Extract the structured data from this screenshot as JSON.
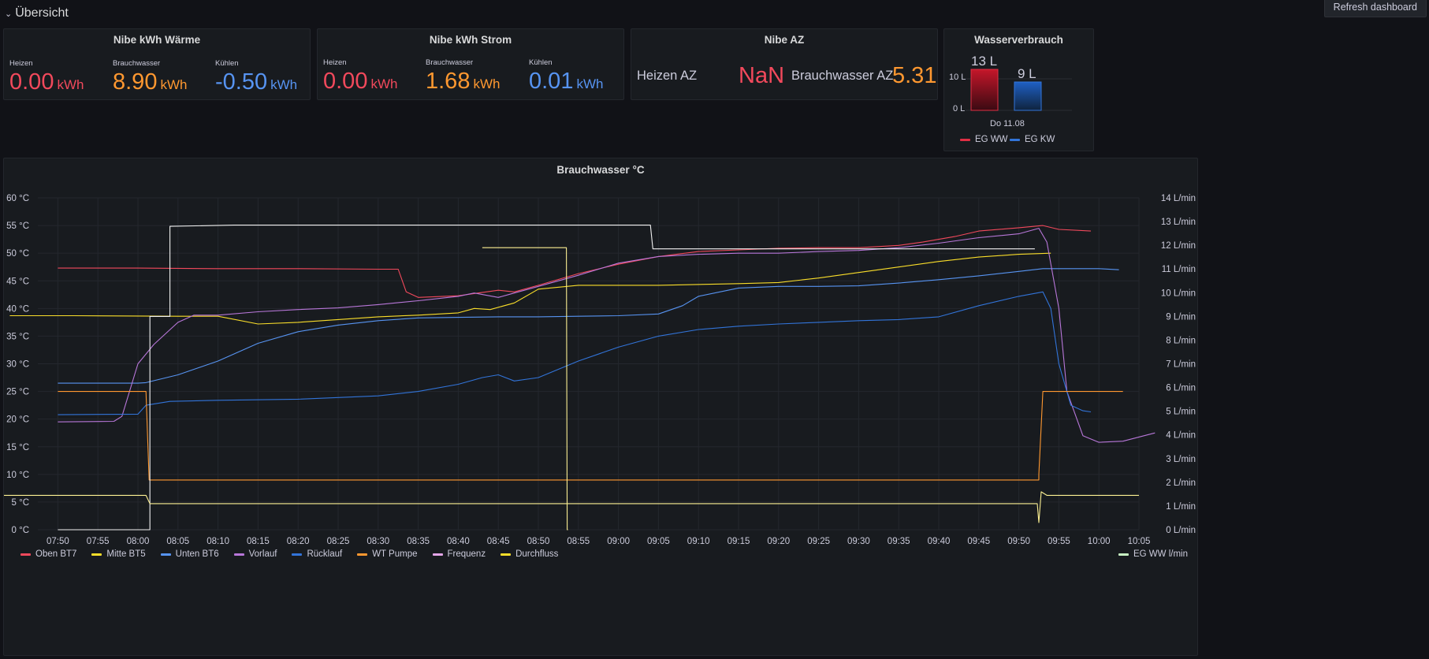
{
  "row": {
    "title": "Übersicht"
  },
  "toolbar": {
    "refresh_label": "Refresh dashboard"
  },
  "waerme": {
    "title": "Nibe kWh Wärme",
    "stats": [
      {
        "label": "Heizen",
        "value": "0.00",
        "unit": "kWh",
        "color": "#f2495c"
      },
      {
        "label": "Brauchwasser",
        "value": "8.90",
        "unit": "kWh",
        "color": "#ff9830"
      },
      {
        "label": "Kühlen",
        "value": "-0.50",
        "unit": "kWh",
        "color": "#5794f2"
      }
    ]
  },
  "strom": {
    "title": "Nibe kWh Strom",
    "stats": [
      {
        "label": "Heizen",
        "value": "0.00",
        "unit": "kWh",
        "color": "#f2495c"
      },
      {
        "label": "Brauchwasser",
        "value": "1.68",
        "unit": "kWh",
        "color": "#ff9830"
      },
      {
        "label": "Kühlen",
        "value": "0.01",
        "unit": "kWh",
        "color": "#5794f2"
      }
    ]
  },
  "az": {
    "title": "Nibe AZ",
    "heizen_label": "Heizen AZ",
    "heizen_value": "NaN",
    "ww_label": "Brauchwasser AZ",
    "ww_value": "5.31"
  },
  "wasser": {
    "title": "Wasserverbrauch",
    "bar_values": [
      "13 L",
      "9 L"
    ],
    "y_ticks": [
      "10 L",
      "0 L"
    ],
    "x_label": "Do 11.08",
    "legend": [
      {
        "name": "EG WW",
        "color": "#e02f44"
      },
      {
        "name": "EG KW",
        "color": "#3274d9"
      }
    ]
  },
  "chart_data": {
    "type": "line",
    "title": "Brauchwasser °C",
    "x_ticks": [
      "07:50",
      "07:55",
      "08:00",
      "08:05",
      "08:10",
      "08:15",
      "08:20",
      "08:25",
      "08:30",
      "08:35",
      "08:40",
      "08:45",
      "08:50",
      "08:55",
      "09:00",
      "09:05",
      "09:10",
      "09:15",
      "09:20",
      "09:25",
      "09:30",
      "09:35",
      "09:40",
      "09:45",
      "09:50",
      "09:55",
      "10:00",
      "10:05"
    ],
    "y_left_ticks": [
      "60 °C",
      "55 °C",
      "50 °C",
      "45 °C",
      "40 °C",
      "35 °C",
      "30 °C",
      "25 °C",
      "20 °C",
      "15 °C",
      "10 °C",
      "5 °C",
      "0 °C"
    ],
    "y_right_ticks": [
      "14 L/min",
      "13 L/min",
      "12 L/min",
      "11 L/min",
      "10 L/min",
      "9 L/min",
      "8 L/min",
      "7 L/min",
      "6 L/min",
      "5 L/min",
      "4 L/min",
      "3 L/min",
      "2 L/min",
      "1 L/min",
      "0 L/min"
    ],
    "ylim_left": [
      0,
      60
    ],
    "ylim_right": [
      0,
      14
    ],
    "xlim_minutes": [
      467.5,
      605
    ],
    "grid": true,
    "legend_position": "bottom-left",
    "series": [
      {
        "name": "Oben BT7",
        "axis": "left",
        "color": "#f2495c",
        "points": [
          [
            470,
            47.3
          ],
          [
            480,
            47.3
          ],
          [
            490,
            47.2
          ],
          [
            500,
            47.2
          ],
          [
            510,
            47.1
          ],
          [
            512.5,
            47.1
          ],
          [
            513.5,
            43
          ],
          [
            515,
            42
          ],
          [
            520,
            42.3
          ],
          [
            525,
            43.3
          ],
          [
            527,
            43
          ],
          [
            530,
            44.2
          ],
          [
            535,
            46.3
          ],
          [
            540,
            48
          ],
          [
            545,
            49.4
          ],
          [
            550,
            50.3
          ],
          [
            555,
            50.6
          ],
          [
            560,
            50.9
          ],
          [
            565,
            51
          ],
          [
            570,
            51
          ],
          [
            575,
            51.4
          ],
          [
            578,
            52
          ],
          [
            582,
            53
          ],
          [
            585,
            54
          ],
          [
            590,
            54.6
          ],
          [
            593,
            55
          ],
          [
            595,
            54.3
          ],
          [
            599,
            54
          ]
        ]
      },
      {
        "name": "Mitte BT5",
        "axis": "left",
        "color": "#fade2a",
        "points": [
          [
            464,
            38.7
          ],
          [
            472,
            38.7
          ],
          [
            485,
            38.6
          ],
          [
            490,
            38.6
          ],
          [
            495,
            37.2
          ],
          [
            500,
            37.5
          ],
          [
            505,
            38
          ],
          [
            510,
            38.5
          ],
          [
            515,
            38.8
          ],
          [
            520,
            39.2
          ],
          [
            522,
            40
          ],
          [
            524,
            39.8
          ],
          [
            527,
            41
          ],
          [
            530,
            43.5
          ],
          [
            535,
            44.2
          ],
          [
            545,
            44.2
          ],
          [
            555,
            44.5
          ],
          [
            560,
            44.7
          ],
          [
            565,
            45.5
          ],
          [
            570,
            46.5
          ],
          [
            575,
            47.5
          ],
          [
            580,
            48.5
          ],
          [
            585,
            49.3
          ],
          [
            590,
            49.8
          ],
          [
            594,
            50
          ]
        ]
      },
      {
        "name": "Unten BT6",
        "axis": "left",
        "color": "#5794f2",
        "points": [
          [
            470,
            26.5
          ],
          [
            480,
            26.5
          ],
          [
            481,
            26.6
          ],
          [
            485,
            28
          ],
          [
            490,
            30.5
          ],
          [
            495,
            33.7
          ],
          [
            500,
            35.8
          ],
          [
            505,
            37
          ],
          [
            510,
            37.8
          ],
          [
            515,
            38.3
          ],
          [
            520,
            38.4
          ],
          [
            525,
            38.5
          ],
          [
            530,
            38.5
          ],
          [
            535,
            38.6
          ],
          [
            540,
            38.7
          ],
          [
            545,
            39
          ],
          [
            548,
            40.5
          ],
          [
            550,
            42.2
          ],
          [
            555,
            43.7
          ],
          [
            560,
            44
          ],
          [
            565,
            44
          ],
          [
            570,
            44.1
          ],
          [
            575,
            44.6
          ],
          [
            580,
            45.2
          ],
          [
            585,
            45.9
          ],
          [
            590,
            46.7
          ],
          [
            593,
            47.2
          ],
          [
            595,
            47.2
          ],
          [
            600,
            47.2
          ],
          [
            602.5,
            47
          ]
        ]
      },
      {
        "name": "Vorlauf",
        "axis": "left",
        "color": "#b877d9",
        "points": [
          [
            470,
            19.5
          ],
          [
            477,
            19.6
          ],
          [
            478,
            20.5
          ],
          [
            480,
            30
          ],
          [
            482,
            33.5
          ],
          [
            485,
            37.5
          ],
          [
            487,
            38.8
          ],
          [
            490,
            38.8
          ],
          [
            495,
            39.4
          ],
          [
            500,
            39.8
          ],
          [
            505,
            40.1
          ],
          [
            510,
            40.7
          ],
          [
            515,
            41.4
          ],
          [
            520,
            42.2
          ],
          [
            522,
            42.8
          ],
          [
            525,
            42
          ],
          [
            527,
            42.8
          ],
          [
            530,
            44
          ],
          [
            535,
            46
          ],
          [
            540,
            48.2
          ],
          [
            545,
            49.4
          ],
          [
            550,
            49.8
          ],
          [
            555,
            50
          ],
          [
            560,
            50
          ],
          [
            565,
            50.3
          ],
          [
            570,
            50.5
          ],
          [
            575,
            51
          ],
          [
            580,
            51.8
          ],
          [
            585,
            52.8
          ],
          [
            590,
            53.5
          ],
          [
            592.5,
            54.5
          ],
          [
            593.5,
            52
          ],
          [
            595,
            40
          ],
          [
            596,
            25
          ],
          [
            598,
            17
          ],
          [
            600,
            15.8
          ],
          [
            603,
            16
          ],
          [
            607,
            17.5
          ]
        ]
      },
      {
        "name": "Rücklauf",
        "axis": "left",
        "color": "#3274d9",
        "points": [
          [
            470,
            20.8
          ],
          [
            480,
            20.9
          ],
          [
            481,
            22.5
          ],
          [
            484,
            23.2
          ],
          [
            490,
            23.4
          ],
          [
            500,
            23.6
          ],
          [
            510,
            24.2
          ],
          [
            515,
            25
          ],
          [
            520,
            26.3
          ],
          [
            523,
            27.5
          ],
          [
            525,
            28
          ],
          [
            527,
            26.9
          ],
          [
            530,
            27.5
          ],
          [
            535,
            30.5
          ],
          [
            540,
            33
          ],
          [
            545,
            35
          ],
          [
            550,
            36.2
          ],
          [
            555,
            36.8
          ],
          [
            560,
            37.2
          ],
          [
            565,
            37.5
          ],
          [
            570,
            37.8
          ],
          [
            575,
            38
          ],
          [
            580,
            38.5
          ],
          [
            585,
            40.5
          ],
          [
            590,
            42.2
          ],
          [
            593,
            43
          ],
          [
            594,
            40
          ],
          [
            595,
            30
          ],
          [
            596.5,
            22.5
          ],
          [
            598,
            21.5
          ],
          [
            599,
            21.3
          ]
        ]
      },
      {
        "name": "WT Pumpe",
        "axis": "left",
        "color": "#ff9830",
        "points": [
          [
            470,
            25
          ],
          [
            480,
            25
          ],
          [
            481,
            25
          ],
          [
            481.4,
            9
          ],
          [
            590,
            9
          ],
          [
            592.5,
            9
          ],
          [
            592.5,
            10
          ],
          [
            593,
            25
          ],
          [
            603,
            25
          ]
        ]
      },
      {
        "name": "Frequenz",
        "axis": "right",
        "color": "#f2f2f2",
        "points": [
          [
            470,
            0
          ],
          [
            481.5,
            0
          ],
          [
            481.5,
            9
          ],
          [
            484,
            9
          ],
          [
            484,
            12.8
          ],
          [
            492,
            12.85
          ],
          [
            500,
            12.85
          ],
          [
            510,
            12.85
          ],
          [
            520,
            12.85
          ],
          [
            530,
            12.85
          ],
          [
            540,
            12.85
          ],
          [
            544,
            12.85
          ],
          [
            544.3,
            11.85
          ],
          [
            550,
            11.85
          ],
          [
            560,
            11.85
          ],
          [
            570,
            11.85
          ],
          [
            580,
            11.85
          ],
          [
            592,
            11.85
          ]
        ]
      },
      {
        "name": "Durchfluss",
        "axis": "right",
        "color": "#fcf093",
        "points": [
          [
            450,
            1.45
          ],
          [
            465,
            1.45
          ],
          [
            480,
            1.45
          ],
          [
            481,
            1.45
          ],
          [
            481.5,
            1.1
          ],
          [
            490,
            1.1
          ],
          [
            500,
            1.1
          ],
          [
            510,
            1.1
          ],
          [
            520,
            1.1
          ],
          [
            530,
            1.1
          ],
          [
            540,
            1.1
          ],
          [
            550,
            1.1
          ],
          [
            560,
            1.1
          ],
          [
            570,
            1.1
          ],
          [
            580,
            1.1
          ],
          [
            590,
            1.1
          ],
          [
            592.3,
            1.1
          ],
          [
            592.5,
            0.3
          ],
          [
            592.8,
            1.6
          ],
          [
            593.5,
            1.45
          ],
          [
            600,
            1.45
          ],
          [
            605,
            1.45
          ]
        ]
      },
      {
        "name": "Durchfluss",
        "axis": "right",
        "color": "#fcf093",
        "points": [
          [
            523,
            11.9
          ],
          [
            533.5,
            11.9
          ],
          [
            533.6,
            0
          ],
          [
            533.7,
            0
          ]
        ]
      }
    ],
    "legend": [
      {
        "name": "Oben BT7",
        "color": "#f2495c"
      },
      {
        "name": "Mitte BT5",
        "color": "#fade2a"
      },
      {
        "name": "Unten BT6",
        "color": "#5794f2"
      },
      {
        "name": "Vorlauf",
        "color": "#b877d9"
      },
      {
        "name": "Rücklauf",
        "color": "#3274d9"
      },
      {
        "name": "WT Pumpe",
        "color": "#ff9830"
      },
      {
        "name": "Frequenz",
        "color": "#e4a6e8"
      },
      {
        "name": "Durchfluss",
        "color": "#fade2a"
      }
    ],
    "legend_right": {
      "name": "EG WW l/min",
      "color": "#c8f2c2"
    }
  }
}
